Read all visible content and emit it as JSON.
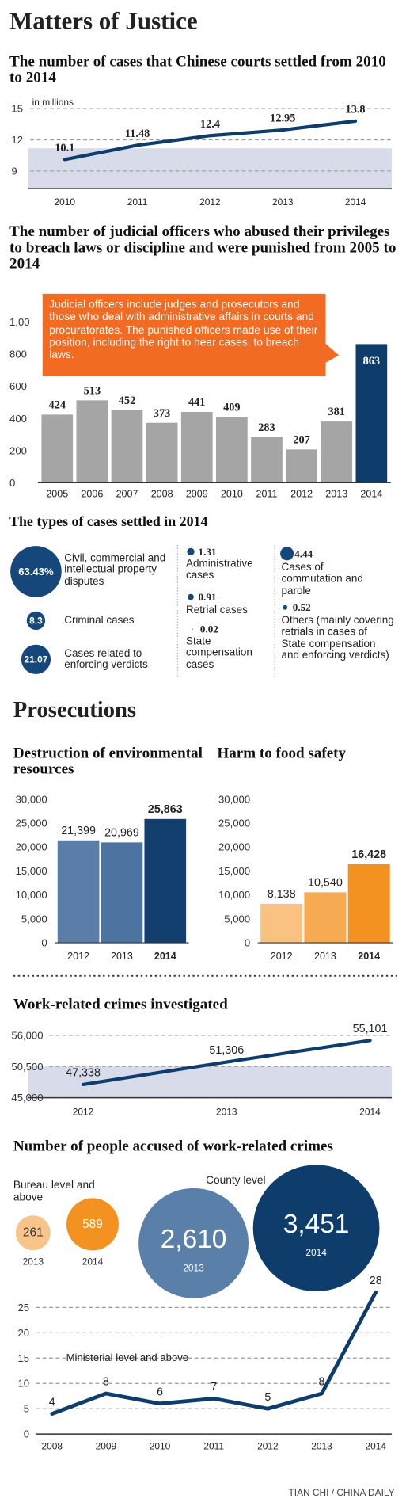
{
  "title": "Matters of Justice",
  "section_title": "Prosecutions",
  "source": "TIAN CHI / CHINA DAILY",
  "chart_data": [
    {
      "type": "line",
      "title": "The number of cases that Chinese courts settled from 2010 to 2014",
      "y_label": "in millions",
      "categories": [
        "2010",
        "2011",
        "2012",
        "2013",
        "2014"
      ],
      "values": [
        10.1,
        11.48,
        12.4,
        12.95,
        13.8
      ],
      "color": "#0f3d6b",
      "ylim": [
        7.3,
        15.7
      ],
      "yticks": [
        9,
        12,
        15
      ],
      "grid": true
    },
    {
      "type": "bar",
      "title": "The number of judicial officers who abused their privileges to breach laws or discipline and were punished from 2005 to 2014",
      "annotation": "Judicial officers include judges and prosecutors and those who deal with administrative affairs in courts and procuratorates. The punished officers made use of their position, including the right to hear cases, to breach laws.",
      "categories": [
        "2005",
        "2006",
        "2007",
        "2008",
        "2009",
        "2010",
        "2011",
        "2012",
        "2013",
        "2014"
      ],
      "values": [
        424,
        513,
        452,
        373,
        441,
        409,
        283,
        207,
        381,
        863
      ],
      "colors": [
        "#a5a5a5",
        "#a5a5a5",
        "#a5a5a5",
        "#a5a5a5",
        "#a5a5a5",
        "#a5a5a5",
        "#a5a5a5",
        "#a5a5a5",
        "#a5a5a5",
        "#0f3d6b"
      ],
      "ylim": [
        0,
        1000
      ],
      "yticks": [
        0,
        200,
        400,
        600,
        800,
        {
          "value": 1000,
          "label": "1,00"
        }
      ],
      "grid": false
    },
    {
      "type": "proportional-circles",
      "title": "The types of cases settled in 2014",
      "categories": [
        "Civil, commercial and intellectual property disputes",
        "Criminal cases",
        "Cases related to enforcing verdicts",
        "Administrative cases",
        "Retrial cases",
        "State compensation cases",
        "Cases of commutation and parole",
        "Others (mainly covering retrials in cases of State compensation and enforcing verdicts)"
      ],
      "values": [
        63.43,
        8.3,
        21.07,
        1.31,
        0.91,
        0.02,
        4.44,
        0.52
      ],
      "value_labels": [
        "63.43%",
        "8.3",
        "21.07",
        "1.31",
        "0.91",
        "0.02",
        "4.44",
        "0.52"
      ],
      "color": "#15477a"
    },
    {
      "type": "bar",
      "title": "Destruction of environmental resources",
      "categories": [
        "2012",
        "2013",
        "2014"
      ],
      "values": [
        21399,
        20969,
        25863
      ],
      "value_labels": [
        "21,399",
        "20,969",
        "25,863"
      ],
      "colors": [
        "#5a7ea8",
        "#4d74a0",
        "#123f6e"
      ],
      "ylim": [
        0,
        30000
      ],
      "yticks": [
        0,
        {
          "value": 5000,
          "label": "5,000"
        },
        {
          "value": 10000,
          "label": "10,000"
        },
        {
          "value": 15000,
          "label": "15,000"
        },
        {
          "value": 20000,
          "label": "20,000"
        },
        {
          "value": 25000,
          "label": "25,000"
        },
        {
          "value": 30000,
          "label": "30,000"
        }
      ],
      "grid": false
    },
    {
      "type": "bar",
      "title": "Harm to food safety",
      "categories": [
        "2012",
        "2013",
        "2014"
      ],
      "values": [
        8138,
        10540,
        16428
      ],
      "value_labels": [
        "8,138",
        "10,540",
        "16,428"
      ],
      "colors": [
        "#f9c281",
        "#f6aa52",
        "#f39221"
      ],
      "ylim": [
        0,
        30000
      ],
      "yticks": [
        0,
        {
          "value": 5000,
          "label": "5,000"
        },
        {
          "value": 10000,
          "label": "10,000"
        },
        {
          "value": 15000,
          "label": "15,000"
        },
        {
          "value": 20000,
          "label": "20,000"
        },
        {
          "value": 25000,
          "label": "25,000"
        },
        {
          "value": 30000,
          "label": "30,000"
        }
      ],
      "grid": false
    },
    {
      "type": "line",
      "title": "Work-related crimes investigated",
      "categories": [
        "2012",
        "2013",
        "2014"
      ],
      "values": [
        47338,
        51306,
        55101
      ],
      "value_labels": [
        "47,338",
        "51,306",
        "55,101"
      ],
      "color": "#0f3d6b",
      "ylim": [
        45000,
        57000
      ],
      "yticks": [
        {
          "value": 45000,
          "label": "45,000"
        },
        {
          "value": 50500,
          "label": "50,500"
        },
        {
          "value": 56000,
          "label": "56,000"
        }
      ],
      "grid": true
    },
    {
      "type": "bubble",
      "title": "Number of people accused of work-related crimes",
      "categories": [
        "2013",
        "2014"
      ],
      "series": [
        {
          "name": "Bureau level and above",
          "colors": [
            "#f8c48a",
            "#f39221"
          ],
          "values": [
            261,
            589
          ],
          "value_labels": [
            "261",
            "589"
          ]
        },
        {
          "name": "County level",
          "colors": [
            "#5a7fa9",
            "#0f3d6b"
          ],
          "values": [
            2610,
            3451
          ],
          "value_labels": [
            "2,610",
            "3,451"
          ]
        }
      ]
    },
    {
      "type": "line",
      "subtitle": "Ministerial level and above",
      "categories": [
        "2008",
        "2009",
        "2010",
        "2011",
        "2012",
        "2013",
        "2014"
      ],
      "values": [
        4,
        8,
        6,
        7,
        5,
        8,
        28
      ],
      "color": "#0f3d6b",
      "ylim": [
        0,
        27
      ],
      "yticks": [
        0,
        5,
        10,
        15,
        20,
        25
      ],
      "grid": true
    }
  ]
}
